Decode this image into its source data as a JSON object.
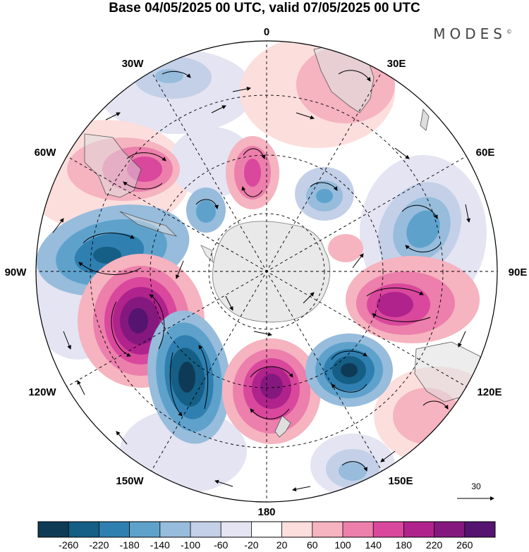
{
  "title": "Base 04/05/2025 00 UTC, valid 07/05/2025 00 UTC",
  "brand": "MODES",
  "brand_mark": "©",
  "longitude_labels": {
    "lon_0": "0",
    "lon_30e": "30E",
    "lon_60e": "60E",
    "lon_90e": "90E",
    "lon_120e": "120E",
    "lon_150e": "150E",
    "lon_180": "180",
    "lon_150w": "150W",
    "lon_120w": "120W",
    "lon_90w": "90W",
    "lon_60w": "60W",
    "lon_30w": "30W"
  },
  "vector_scale_label": "30",
  "colorbar": {
    "ticks": [
      "-260",
      "-220",
      "-180",
      "-140",
      "-100",
      "-60",
      "-20",
      "20",
      "60",
      "100",
      "140",
      "180",
      "220",
      "260"
    ],
    "colors": [
      "#0f3a56",
      "#155e85",
      "#2f7fb0",
      "#5ea2cc",
      "#97bcdc",
      "#c3d0e8",
      "#e4e4f2",
      "#ffffff",
      "#fcdedd",
      "#f6b3c0",
      "#ec7fab",
      "#d9489c",
      "#b0238c",
      "#84187f",
      "#551470"
    ]
  },
  "colors": {
    "land": "#dedede",
    "antarctica": "#e9e9e9",
    "grid": "#000000",
    "arrow": "#000000"
  }
}
